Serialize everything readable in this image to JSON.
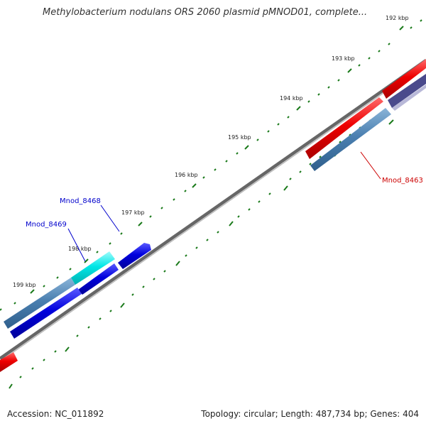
{
  "title": "Methylobacterium nodulans ORS 2060 plasmid pMNOD01, complete...",
  "footer": {
    "accession": "Accession: NC_011892",
    "summary": "Topology: circular; Length: 487,734 bp; Genes: 404"
  },
  "ticks": [
    "192 kbp",
    "193 kbp",
    "194 kbp",
    "195 kbp",
    "196 kbp",
    "197 kbp",
    "198 kbp",
    "199 kbp"
  ],
  "gene_labels": [
    "Mnod_8463",
    "Mnod_8468",
    "Mnod_8469"
  ],
  "colors": {
    "backbone": "#777777",
    "tick_dots": "#1a7a1a",
    "forward_red": "#ee0000",
    "reverse_blue": "#0000dd",
    "steelblue": "#4a7fb0",
    "cyan": "#00e6e6",
    "label_red": "#cc0000",
    "label_blue": "#0000cc",
    "purple": "#4a4a8c"
  }
}
